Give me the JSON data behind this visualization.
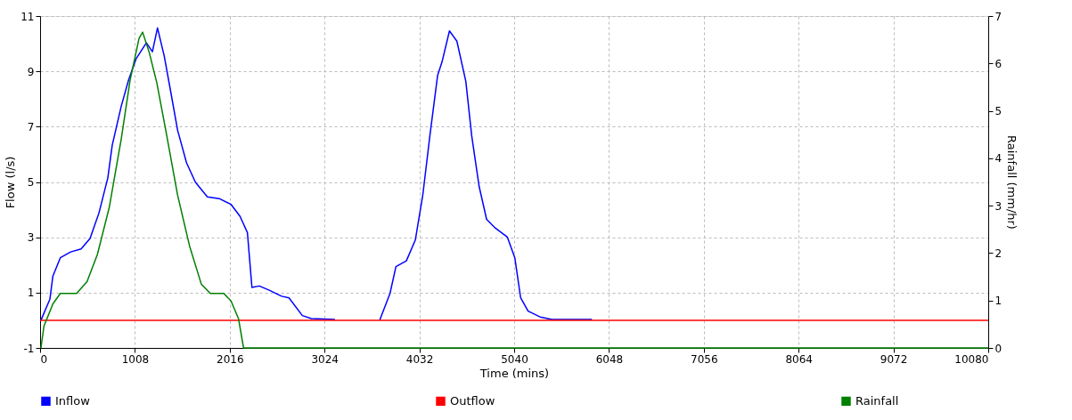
{
  "chart_data": {
    "type": "line",
    "xlabel": "Time (mins)",
    "ylabel": "Flow (l/s)",
    "y2label": "Rainfall (mm/hr)",
    "xlim": [
      0,
      10080
    ],
    "xticks": [
      0,
      1008,
      2016,
      3024,
      4032,
      5040,
      6048,
      7056,
      8064,
      9072,
      10080
    ],
    "ylim": [
      -1,
      11
    ],
    "yticks": [
      -1,
      1,
      3,
      5,
      7,
      9,
      11
    ],
    "y2lim": [
      0,
      7
    ],
    "y2ticks": [
      0,
      1,
      2,
      3,
      4,
      5,
      6,
      7
    ],
    "grid": true,
    "legend": "bottom",
    "line_style": "solid",
    "marker": "none",
    "series": [
      {
        "name": "Inflow",
        "color": "#0000ff",
        "x": [
          9,
          104,
          136,
          215,
          325,
          436,
          531,
          625,
          720,
          767,
          862,
          941,
          1020,
          1130,
          1194,
          1248,
          1320,
          1383,
          1462,
          1557,
          1651,
          1778,
          1904,
          2030,
          2125,
          2204,
          2252,
          2330,
          2441,
          2567,
          2646,
          2788,
          2883,
          3135,
          3400,
          3610,
          3720,
          3783,
          3894,
          3989,
          4068,
          4147,
          4226,
          4273,
          4352,
          4431,
          4526,
          4589,
          4668,
          4747,
          4841,
          4967,
          5047,
          5109,
          5188,
          5315,
          5441,
          5867
        ],
        "values": [
          0.0,
          0.76,
          1.6,
          2.26,
          2.47,
          2.58,
          2.96,
          3.87,
          5.15,
          6.33,
          7.73,
          8.69,
          9.45,
          10.03,
          9.71,
          10.57,
          9.55,
          8.37,
          6.87,
          5.69,
          4.99,
          4.46,
          4.4,
          4.19,
          3.76,
          3.17,
          1.19,
          1.24,
          1.08,
          0.87,
          0.81,
          0.17,
          0.06,
          0.03,
          null,
          0.0,
          0.97,
          1.94,
          2.15,
          2.9,
          4.51,
          6.76,
          8.85,
          9.34,
          10.46,
          10.09,
          8.64,
          6.66,
          4.83,
          3.65,
          3.33,
          3.01,
          2.26,
          0.81,
          0.33,
          0.12,
          0.03,
          0.03
        ]
      },
      {
        "name": "Outflow",
        "color": "#ff0000",
        "x": [
          0,
          10080
        ],
        "values": [
          0,
          0
        ]
      },
      {
        "name": "Rainfall",
        "color": "#008000",
        "axis": "y2",
        "x": [
          9,
          41,
          136,
          215,
          388,
          499,
          609,
          736,
          862,
          957,
          1052,
          1090,
          1162,
          1241,
          1336,
          1462,
          1589,
          1715,
          1810,
          1952,
          2030,
          2109,
          2163,
          10080
        ],
        "values": [
          0.0,
          0.46,
          0.93,
          1.15,
          1.15,
          1.4,
          1.97,
          2.97,
          4.4,
          5.65,
          6.53,
          6.66,
          6.22,
          5.59,
          4.59,
          3.22,
          2.15,
          1.34,
          1.15,
          1.15,
          0.99,
          0.62,
          0.0,
          0.0
        ]
      }
    ]
  }
}
